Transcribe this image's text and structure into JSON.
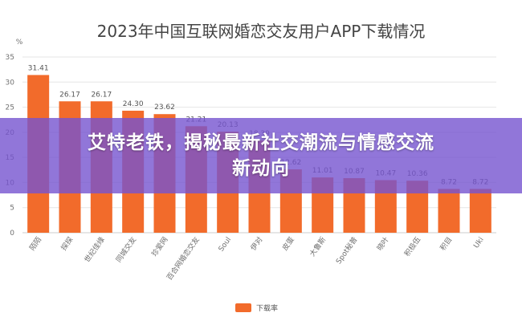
{
  "banner": {
    "line1": "艾特老铁，揭秘最新社交潮流与情感交流",
    "line2": "新动向"
  },
  "colors": {
    "bar": "#f26b2b",
    "grid": "#e6e6e6",
    "axis_text": "#707070",
    "title": "#444444",
    "banner": "#7654d0"
  },
  "chart_data": {
    "type": "bar",
    "title": "2023年中国互联网婚恋交友用户APP下载情况",
    "ylabel": "%",
    "xlabel": "",
    "ylim": [
      0,
      35
    ],
    "yticks": [
      0,
      5,
      10,
      15,
      20,
      25,
      30,
      35
    ],
    "grid": true,
    "legend_position": "bottom",
    "categories": [
      "陌陌",
      "探探",
      "世纪佳缘",
      "同城交友",
      "珍爱网",
      "百合网婚恋交友",
      "Soul",
      "伊对",
      "皮蛋",
      "大鲁斯",
      "Spot秘普",
      "晓叶",
      "积极伍",
      "积目",
      "Uki"
    ],
    "series": [
      {
        "name": "下载率",
        "values": [
          31.41,
          26.17,
          26.17,
          24.3,
          23.62,
          21.21,
          20.13,
          18.39,
          12.62,
          11.01,
          10.87,
          10.47,
          10.36,
          8.72,
          8.72
        ]
      }
    ],
    "data_labels": [
      "31.41",
      "26.17",
      "26.17",
      "24.30",
      "23.62",
      "21.21",
      "20.13",
      "18.39",
      "12.62",
      "11.01",
      "10.87",
      "10.47",
      "10.36",
      "8.72",
      "8.72"
    ]
  }
}
